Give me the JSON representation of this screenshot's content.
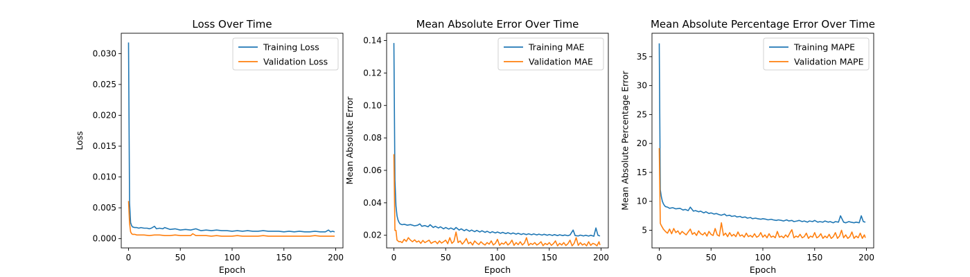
{
  "chart_data": [
    {
      "type": "line",
      "title": "Loss Over Time",
      "xlabel": "Epoch",
      "ylabel": "Loss",
      "xlim": [
        -7,
        207
      ],
      "ylim": [
        -0.0015,
        0.0333
      ],
      "xticks": [
        0,
        50,
        100,
        150,
        200
      ],
      "xtick_labels": [
        "0",
        "50",
        "100",
        "150",
        "200"
      ],
      "yticks": [
        0,
        0.005,
        0.01,
        0.015,
        0.02,
        0.025,
        0.03
      ],
      "ytick_labels": [
        "0.000",
        "0.005",
        "0.010",
        "0.015",
        "0.020",
        "0.025",
        "0.030"
      ],
      "grid": false,
      "legend": "top-right",
      "series": [
        {
          "name": "Training Loss",
          "color": "#1f77b4",
          "x": [
            0,
            1,
            2,
            3,
            4,
            6,
            8,
            10,
            12,
            15,
            18,
            20,
            22,
            25,
            27,
            30,
            33,
            35,
            40,
            45,
            50,
            55,
            60,
            65,
            70,
            75,
            80,
            85,
            90,
            95,
            100,
            105,
            110,
            115,
            120,
            125,
            130,
            135,
            140,
            145,
            150,
            155,
            160,
            165,
            170,
            175,
            180,
            185,
            190,
            193,
            195,
            197,
            199
          ],
          "y": [
            0.0318,
            0.0058,
            0.0026,
            0.0021,
            0.0019,
            0.0018,
            0.0018,
            0.0017,
            0.0018,
            0.0017,
            0.0017,
            0.0016,
            0.0017,
            0.002,
            0.0016,
            0.0017,
            0.0016,
            0.0018,
            0.0015,
            0.0016,
            0.0014,
            0.0015,
            0.0014,
            0.0016,
            0.0013,
            0.0014,
            0.0013,
            0.0014,
            0.0013,
            0.0013,
            0.0012,
            0.0013,
            0.0012,
            0.0013,
            0.0012,
            0.0012,
            0.0013,
            0.0012,
            0.0012,
            0.0012,
            0.0011,
            0.0012,
            0.0011,
            0.0012,
            0.0011,
            0.0011,
            0.0012,
            0.0011,
            0.0011,
            0.0014,
            0.0011,
            0.0012,
            0.0011
          ]
        },
        {
          "name": "Validation Loss",
          "color": "#ff7f0e",
          "x": [
            0,
            1,
            2,
            3,
            4,
            6,
            8,
            10,
            15,
            20,
            25,
            30,
            35,
            40,
            45,
            50,
            55,
            60,
            62,
            65,
            70,
            75,
            80,
            85,
            90,
            95,
            100,
            105,
            110,
            115,
            120,
            125,
            130,
            135,
            140,
            145,
            150,
            155,
            160,
            165,
            170,
            175,
            180,
            185,
            190,
            195,
            199
          ],
          "y": [
            0.0061,
            0.0025,
            0.0011,
            0.0008,
            0.0007,
            0.0007,
            0.0006,
            0.0006,
            0.0006,
            0.0005,
            0.0006,
            0.0006,
            0.0005,
            0.0005,
            0.0006,
            0.0005,
            0.0005,
            0.0005,
            0.0008,
            0.0005,
            0.0005,
            0.0005,
            0.0004,
            0.0005,
            0.0004,
            0.0004,
            0.0004,
            0.0005,
            0.0004,
            0.0004,
            0.0004,
            0.0004,
            0.0005,
            0.0004,
            0.0004,
            0.0004,
            0.0004,
            0.0004,
            0.0004,
            0.0004,
            0.0004,
            0.0004,
            0.0005,
            0.0004,
            0.0004,
            0.0004,
            0.0004
          ]
        }
      ]
    },
    {
      "type": "line",
      "title": "Mean Absolute Error Over Time",
      "xlabel": "Epoch",
      "ylabel": "Mean Absolute Error",
      "xlim": [
        -7,
        207
      ],
      "ylim": [
        0.0122,
        0.1445
      ],
      "xticks": [
        0,
        50,
        100,
        150,
        200
      ],
      "xtick_labels": [
        "0",
        "50",
        "100",
        "150",
        "200"
      ],
      "yticks": [
        0.02,
        0.04,
        0.06,
        0.08,
        0.1,
        0.12,
        0.14
      ],
      "ytick_labels": [
        "0.02",
        "0.04",
        "0.06",
        "0.08",
        "0.10",
        "0.12",
        "0.14"
      ],
      "grid": false,
      "legend": "top-right",
      "series": [
        {
          "name": "Training MAE",
          "color": "#1f77b4",
          "x": [
            0,
            1,
            2,
            3,
            4,
            5,
            6,
            8,
            10,
            13,
            16,
            20,
            23,
            25,
            27,
            30,
            33,
            35,
            38,
            40,
            43,
            45,
            48,
            50,
            53,
            55,
            58,
            60,
            63,
            65,
            68,
            70,
            73,
            75,
            78,
            80,
            83,
            85,
            88,
            90,
            93,
            95,
            98,
            100,
            103,
            105,
            108,
            110,
            113,
            115,
            118,
            120,
            123,
            125,
            128,
            130,
            133,
            135,
            138,
            140,
            143,
            145,
            148,
            150,
            153,
            155,
            158,
            160,
            163,
            165,
            168,
            170,
            173,
            175,
            178,
            180,
            183,
            185,
            188,
            190,
            193,
            195,
            197,
            199
          ],
          "y": [
            0.1385,
            0.054,
            0.038,
            0.032,
            0.0295,
            0.028,
            0.027,
            0.0265,
            0.0268,
            0.0262,
            0.0266,
            0.0258,
            0.0262,
            0.027,
            0.0255,
            0.026,
            0.0252,
            0.0265,
            0.0248,
            0.0255,
            0.0245,
            0.0252,
            0.024,
            0.0248,
            0.0238,
            0.0245,
            0.0235,
            0.0248,
            0.0232,
            0.024,
            0.0228,
            0.0236,
            0.0225,
            0.0232,
            0.0222,
            0.023,
            0.022,
            0.0228,
            0.0218,
            0.0225,
            0.0215,
            0.0222,
            0.0214,
            0.022,
            0.0212,
            0.0218,
            0.021,
            0.0216,
            0.0208,
            0.0214,
            0.0207,
            0.0212,
            0.0205,
            0.021,
            0.0204,
            0.0209,
            0.0203,
            0.0208,
            0.0202,
            0.0207,
            0.0201,
            0.0206,
            0.02,
            0.0205,
            0.0199,
            0.0204,
            0.0198,
            0.0203,
            0.0198,
            0.0202,
            0.0197,
            0.0202,
            0.0232,
            0.0198,
            0.0196,
            0.0201,
            0.0196,
            0.02,
            0.0195,
            0.02,
            0.0194,
            0.0245,
            0.02,
            0.0196
          ]
        },
        {
          "name": "Validation MAE",
          "color": "#ff7f0e",
          "x": [
            0,
            1,
            2,
            3,
            4,
            5,
            6,
            8,
            10,
            12,
            14,
            16,
            18,
            20,
            22,
            24,
            26,
            28,
            30,
            32,
            34,
            36,
            38,
            40,
            42,
            44,
            46,
            48,
            50,
            52,
            54,
            56,
            58,
            60,
            62,
            64,
            66,
            68,
            70,
            72,
            74,
            76,
            78,
            80,
            82,
            84,
            86,
            88,
            90,
            92,
            94,
            96,
            98,
            100,
            102,
            104,
            106,
            108,
            110,
            112,
            114,
            116,
            118,
            120,
            122,
            124,
            126,
            128,
            130,
            132,
            134,
            136,
            138,
            140,
            142,
            144,
            146,
            148,
            150,
            152,
            154,
            156,
            158,
            160,
            162,
            164,
            166,
            168,
            170,
            172,
            174,
            176,
            178,
            180,
            182,
            184,
            186,
            188,
            190,
            192,
            194,
            196,
            198,
            199
          ],
          "y": [
            0.07,
            0.023,
            0.023,
            0.017,
            0.0165,
            0.016,
            0.0162,
            0.0155,
            0.0175,
            0.0162,
            0.0185,
            0.017,
            0.016,
            0.0172,
            0.0158,
            0.0165,
            0.015,
            0.0168,
            0.0155,
            0.0162,
            0.017,
            0.015,
            0.0158,
            0.0163,
            0.0148,
            0.0165,
            0.0152,
            0.016,
            0.017,
            0.0148,
            0.0185,
            0.015,
            0.0162,
            0.022,
            0.0155,
            0.0165,
            0.0145,
            0.016,
            0.018,
            0.0148,
            0.0158,
            0.014,
            0.0165,
            0.0152,
            0.0143,
            0.016,
            0.0148,
            0.014,
            0.0155,
            0.0145,
            0.0165,
            0.014,
            0.015,
            0.0175,
            0.0138,
            0.0152,
            0.0145,
            0.016,
            0.014,
            0.015,
            0.017,
            0.0138,
            0.0155,
            0.0142,
            0.016,
            0.014,
            0.0152,
            0.0185,
            0.0138,
            0.015,
            0.0143,
            0.0155,
            0.014,
            0.0148,
            0.016,
            0.0136,
            0.015,
            0.0142,
            0.0155,
            0.0138,
            0.0148,
            0.0165,
            0.0135,
            0.015,
            0.014,
            0.0155,
            0.0137,
            0.0148,
            0.017,
            0.0135,
            0.015,
            0.0185,
            0.0138,
            0.0155,
            0.014,
            0.0148,
            0.0135,
            0.016,
            0.0138,
            0.015,
            0.0145,
            0.0135,
            0.016,
            0.014
          ]
        }
      ]
    },
    {
      "type": "line",
      "title": "Mean Absolute Percentage Error Over Time",
      "xlabel": "Epoch",
      "ylabel": "Mean Absolute Percentage Error",
      "xlim": [
        -7,
        207
      ],
      "ylim": [
        1.95,
        39.05
      ],
      "xticks": [
        0,
        50,
        100,
        150,
        200
      ],
      "xtick_labels": [
        "0",
        "50",
        "100",
        "150",
        "200"
      ],
      "yticks": [
        5,
        10,
        15,
        20,
        25,
        30,
        35
      ],
      "ytick_labels": [
        "5",
        "10",
        "15",
        "20",
        "25",
        "30",
        "35"
      ],
      "grid": false,
      "legend": "top-right",
      "series": [
        {
          "name": "Training MAPE",
          "color": "#1f77b4",
          "x": [
            0,
            1,
            2,
            3,
            4,
            5,
            6,
            8,
            10,
            13,
            16,
            20,
            23,
            25,
            28,
            30,
            33,
            35,
            38,
            40,
            43,
            45,
            48,
            50,
            53,
            55,
            58,
            60,
            63,
            65,
            68,
            70,
            73,
            75,
            78,
            80,
            83,
            85,
            88,
            90,
            93,
            95,
            98,
            100,
            103,
            105,
            108,
            110,
            113,
            115,
            118,
            120,
            123,
            125,
            128,
            130,
            133,
            135,
            138,
            140,
            143,
            145,
            148,
            150,
            153,
            155,
            158,
            160,
            163,
            165,
            168,
            170,
            173,
            175,
            178,
            180,
            183,
            185,
            188,
            190,
            193,
            195,
            197,
            199
          ],
          "y": [
            37.3,
            12.0,
            10.8,
            10.0,
            9.6,
            9.3,
            9.1,
            9.0,
            8.8,
            8.9,
            8.7,
            8.8,
            8.5,
            8.6,
            8.4,
            9.0,
            8.3,
            8.4,
            8.2,
            8.3,
            8.0,
            8.2,
            7.9,
            8.0,
            7.8,
            7.9,
            7.7,
            7.6,
            7.8,
            7.5,
            7.6,
            7.4,
            7.5,
            7.3,
            7.4,
            7.2,
            7.3,
            7.1,
            7.2,
            7.0,
            7.1,
            7.0,
            6.9,
            7.0,
            6.9,
            6.8,
            6.9,
            6.8,
            6.7,
            6.8,
            6.7,
            6.6,
            6.8,
            6.6,
            6.7,
            6.5,
            6.6,
            6.7,
            6.5,
            6.6,
            6.4,
            6.6,
            6.5,
            6.7,
            6.4,
            6.5,
            6.4,
            6.6,
            6.4,
            6.5,
            6.3,
            6.5,
            6.4,
            7.5,
            6.4,
            6.3,
            6.5,
            6.4,
            6.3,
            6.4,
            6.3,
            7.5,
            6.5,
            6.4
          ]
        },
        {
          "name": "Validation MAPE",
          "color": "#ff7f0e",
          "x": [
            0,
            1,
            2,
            3,
            4,
            5,
            6,
            8,
            10,
            12,
            14,
            16,
            18,
            20,
            22,
            24,
            26,
            28,
            30,
            32,
            34,
            36,
            38,
            40,
            42,
            44,
            46,
            48,
            50,
            52,
            54,
            56,
            58,
            60,
            62,
            64,
            66,
            68,
            70,
            72,
            74,
            76,
            78,
            80,
            82,
            84,
            86,
            88,
            90,
            92,
            94,
            96,
            98,
            100,
            102,
            104,
            106,
            108,
            110,
            112,
            114,
            116,
            118,
            120,
            122,
            124,
            126,
            128,
            130,
            132,
            134,
            136,
            138,
            140,
            142,
            144,
            146,
            148,
            150,
            152,
            154,
            156,
            158,
            160,
            162,
            164,
            166,
            168,
            170,
            172,
            174,
            176,
            178,
            180,
            182,
            184,
            186,
            188,
            190,
            192,
            194,
            196,
            198,
            199
          ],
          "y": [
            19.2,
            6.2,
            5.8,
            5.5,
            5.2,
            5.0,
            4.8,
            4.5,
            5.2,
            4.4,
            5.3,
            4.6,
            4.9,
            4.3,
            4.8,
            4.5,
            4.2,
            4.7,
            5.2,
            4.3,
            4.6,
            4.1,
            4.9,
            4.4,
            4.2,
            4.6,
            4.0,
            4.8,
            4.3,
            4.1,
            5.3,
            4.2,
            4.0,
            6.3,
            4.1,
            4.5,
            3.9,
            4.6,
            4.0,
            4.3,
            3.9,
            4.7,
            4.0,
            4.2,
            3.8,
            4.5,
            3.9,
            4.1,
            3.8,
            4.4,
            3.8,
            4.0,
            4.6,
            3.8,
            4.2,
            3.7,
            4.4,
            3.8,
            4.0,
            3.7,
            4.8,
            3.8,
            4.0,
            3.7,
            4.2,
            3.8,
            4.5,
            5.1,
            3.7,
            4.0,
            3.8,
            4.3,
            3.7,
            3.9,
            4.5,
            3.6,
            4.0,
            3.8,
            4.6,
            3.7,
            3.9,
            4.4,
            3.6,
            4.0,
            3.7,
            4.3,
            3.6,
            3.9,
            4.6,
            3.6,
            4.0,
            5.0,
            3.7,
            4.2,
            3.6,
            3.9,
            4.7,
            3.6,
            4.0,
            3.7,
            4.5,
            3.6,
            4.2,
            3.7
          ]
        }
      ]
    }
  ]
}
